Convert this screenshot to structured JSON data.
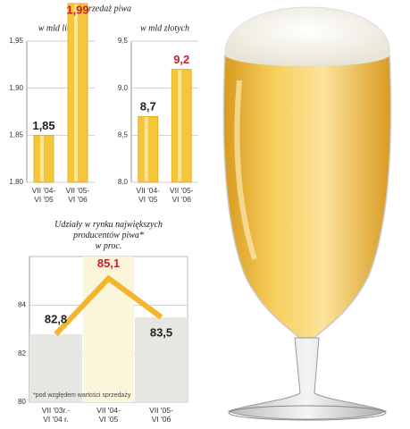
{
  "header": {
    "title": "Sprzedaż piwa"
  },
  "chart_data": [
    {
      "type": "bar",
      "title": "w mld litrów",
      "categories": [
        "VII '04-\nVI '05",
        "VII '05-\nVI '06"
      ],
      "values": [
        1.85,
        1.99
      ],
      "value_labels": [
        "1,85",
        "1,99"
      ],
      "value_label_colors": [
        "#222222",
        "#c8202e"
      ],
      "color": "#f5c53a",
      "ylim": [
        1.8,
        1.95
      ],
      "yticks": [
        {
          "value": 1.8,
          "label": "1,80"
        },
        {
          "value": 1.85,
          "label": "1,85"
        },
        {
          "value": 1.9,
          "label": "1,90"
        },
        {
          "value": 1.95,
          "label": "1,95"
        }
      ],
      "grid": true
    },
    {
      "type": "bar",
      "title": "w mld złotych",
      "categories": [
        "VII '04-\nVI '05",
        "VII '05-\nVI '06"
      ],
      "values": [
        8.7,
        9.2
      ],
      "value_labels": [
        "8,7",
        "9,2"
      ],
      "value_label_colors": [
        "#222222",
        "#c8202e"
      ],
      "color": "#f5c53a",
      "ylim": [
        8.0,
        9.5
      ],
      "yticks": [
        {
          "value": 8.0,
          "label": "8,0"
        },
        {
          "value": 8.5,
          "label": "8,5"
        },
        {
          "value": 9.0,
          "label": "9,0"
        },
        {
          "value": 9.5,
          "label": "9,5"
        }
      ],
      "grid": true
    },
    {
      "type": "line",
      "title": "Udziały w rynku największych\nproducentów piwa*\nw proc.",
      "categories": [
        "VII '03r.-\nVI '04 r.",
        "VII '04-\nVI '05",
        "VII '05-\nVI '06"
      ],
      "values": [
        82.8,
        85.1,
        83.5
      ],
      "value_labels": [
        "82,8",
        "85,1",
        "83,5"
      ],
      "value_label_colors": [
        "#222222",
        "#c8202e",
        "#222222"
      ],
      "color": "#f2b52c",
      "ylim": [
        80,
        86
      ],
      "yticks": [
        80,
        82,
        84
      ],
      "grid": true,
      "annotation": "*pod względem wartości sprzedaży"
    }
  ]
}
